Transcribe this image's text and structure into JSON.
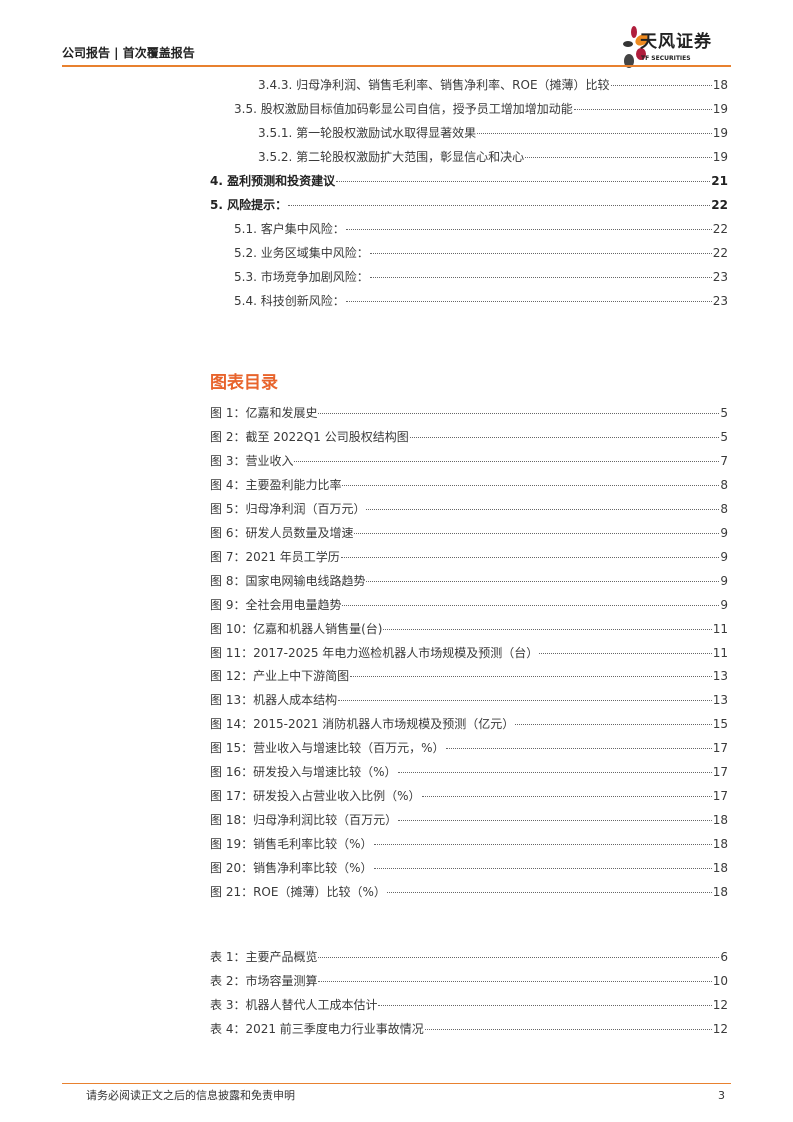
{
  "header": {
    "title": "公司报告 | 首次覆盖报告",
    "logo_cn": "天风证券",
    "logo_en": "TF SECURITIES",
    "accent": "#e8812f"
  },
  "toc": [
    {
      "level": 3,
      "title": "3.4.3. 归母净利润、销售毛利率、销售净利率、ROE（摊薄）比较",
      "page": "18"
    },
    {
      "level": 2,
      "title": "3.5. 股权激励目标值加码彰显公司自信，授予员工增加增加动能",
      "page": "19"
    },
    {
      "level": 3,
      "title": "3.5.1. 第一轮股权激励试水取得显著效果",
      "page": "19"
    },
    {
      "level": 3,
      "title": "3.5.2. 第二轮股权激励扩大范围，彰显信心和决心",
      "page": "19"
    },
    {
      "level": 1,
      "title": "4. 盈利预测和投资建议",
      "page": "21"
    },
    {
      "level": 1,
      "title": "5. 风险提示：",
      "page": "22"
    },
    {
      "level": 2,
      "title": "5.1. 客户集中风险：",
      "page": "22"
    },
    {
      "level": 2,
      "title": "5.2. 业务区域集中风险：",
      "page": "22"
    },
    {
      "level": 2,
      "title": "5.3. 市场竞争加剧风险：",
      "page": "23"
    },
    {
      "level": 2,
      "title": "5.4. 科技创新风险：",
      "page": "23"
    }
  ],
  "figures_title": "图表目录",
  "figures": [
    {
      "title": "图 1：亿嘉和发展史",
      "page": "5"
    },
    {
      "title": "图 2：截至 2022Q1 公司股权结构图",
      "page": "5"
    },
    {
      "title": "图 3：营业收入",
      "page": "7"
    },
    {
      "title": "图 4：主要盈利能力比率",
      "page": "8"
    },
    {
      "title": "图 5：归母净利润（百万元）",
      "page": "8"
    },
    {
      "title": "图 6：研发人员数量及增速",
      "page": "9"
    },
    {
      "title": "图 7：2021 年员工学历",
      "page": "9"
    },
    {
      "title": "图 8：国家电网输电线路趋势",
      "page": "9"
    },
    {
      "title": "图 9：全社会用电量趋势",
      "page": "9"
    },
    {
      "title": "图 10：亿嘉和机器人销售量(台)",
      "page": "11"
    },
    {
      "title": "图 11：2017-2025 年电力巡检机器人市场规模及预测（台）",
      "page": "11"
    },
    {
      "title": "图 12：产业上中下游简图",
      "page": "13"
    },
    {
      "title": "图 13：机器人成本结构",
      "page": "13"
    },
    {
      "title": "图 14：2015-2021 消防机器人市场规模及预测（亿元）",
      "page": "15"
    },
    {
      "title": "图 15：营业收入与增速比较（百万元，%）",
      "page": "17"
    },
    {
      "title": "图 16：研发投入与增速比较（%）",
      "page": "17"
    },
    {
      "title": "图 17：研发投入占营业收入比例（%）",
      "page": "17"
    },
    {
      "title": "图 18：归母净利润比较（百万元）",
      "page": "18"
    },
    {
      "title": "图 19：销售毛利率比较（%）",
      "page": "18"
    },
    {
      "title": "图 20：销售净利率比较（%）",
      "page": "18"
    },
    {
      "title": "图 21：ROE（摊薄）比较（%）",
      "page": "18"
    }
  ],
  "tables": [
    {
      "title": "表 1：主要产品概览",
      "page": "6"
    },
    {
      "title": "表 2：市场容量测算",
      "page": "10"
    },
    {
      "title": "表 3：机器人替代人工成本估计",
      "page": "12"
    },
    {
      "title": "表 4：2021 前三季度电力行业事故情况",
      "page": "12"
    }
  ],
  "footer": {
    "disclaimer": "请务必阅读正文之后的信息披露和免责申明",
    "page": "3"
  }
}
